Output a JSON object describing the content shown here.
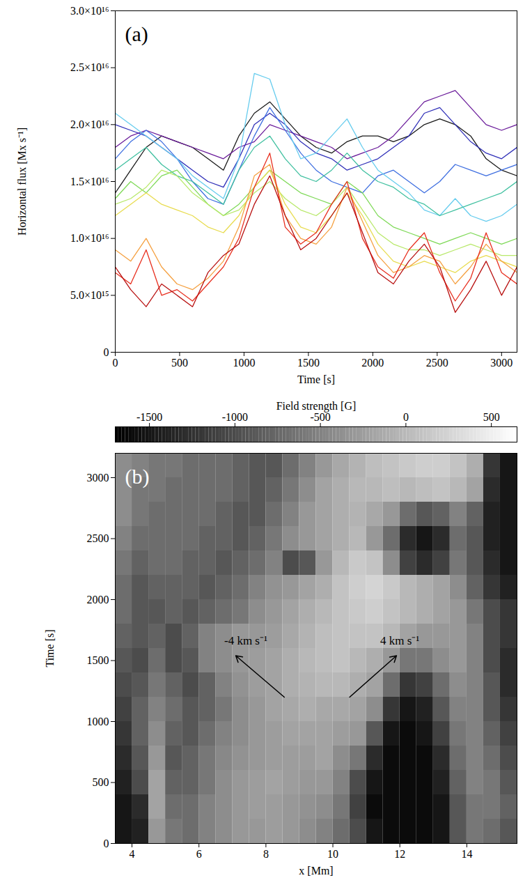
{
  "chart_data": [
    {
      "type": "line",
      "panel": "(a)",
      "x_label": "Time [s]",
      "y_label": "Horizontal flux [Mx s⁻¹]",
      "xlim": [
        0,
        3120
      ],
      "xticks": [
        0,
        500,
        1000,
        1500,
        2000,
        2500,
        3000
      ],
      "ylim": [
        0,
        3e+16
      ],
      "yticks": [
        0,
        {
          "value": 5000000000000000.0,
          "label": "5.0×10¹⁵"
        },
        {
          "value": 1e+16,
          "label": "1.0×10¹⁶"
        },
        {
          "value": 1.5e+16,
          "label": "1.5×10¹⁶"
        },
        {
          "value": 2e+16,
          "label": "2.0×10¹⁶"
        },
        {
          "value": 2.5e+16,
          "label": "2.5×10¹⁶"
        },
        {
          "value": 3e+16,
          "label": "3.0×10¹⁶"
        }
      ],
      "grid": false,
      "x": [
        0,
        120,
        240,
        360,
        480,
        600,
        720,
        840,
        960,
        1080,
        1200,
        1320,
        1440,
        1560,
        1680,
        1800,
        1920,
        2040,
        2160,
        2280,
        2400,
        2520,
        2640,
        2760,
        2880,
        3000,
        3120
      ],
      "series": [
        {
          "color": "#1a1a1a",
          "values": [
            1.4e+16,
            1.6e+16,
            1.8e+16,
            1.9e+16,
            1.85e+16,
            1.8e+16,
            1.7e+16,
            1.6e+16,
            1.9e+16,
            2.1e+16,
            2.2e+16,
            2.05e+16,
            1.9e+16,
            1.8e+16,
            1.75e+16,
            1.85e+16,
            1.9e+16,
            1.9e+16,
            1.85e+16,
            1.9e+16,
            2e+16,
            2.05e+16,
            2e+16,
            1.9e+16,
            1.7e+16,
            1.6e+16,
            1.55e+16
          ]
        },
        {
          "color": "#6a1b9a",
          "values": [
            1.8e+16,
            1.9e+16,
            1.95e+16,
            1.9e+16,
            1.85e+16,
            1.8e+16,
            1.75e+16,
            1.7e+16,
            1.8e+16,
            1.85e+16,
            2e+16,
            1.95e+16,
            1.9e+16,
            1.85e+16,
            1.8e+16,
            1.7e+16,
            1.75e+16,
            1.8e+16,
            1.9e+16,
            2.05e+16,
            2.2e+16,
            2.25e+16,
            2.3e+16,
            2.15e+16,
            2e+16,
            1.95e+16,
            2e+16
          ]
        },
        {
          "color": "#2f2fb8",
          "values": [
            2e+16,
            1.95e+16,
            1.9e+16,
            1.8e+16,
            1.7e+16,
            1.6e+16,
            1.5e+16,
            1.45e+16,
            1.7e+16,
            2e+16,
            2.1e+16,
            2e+16,
            1.85e+16,
            1.75e+16,
            1.7e+16,
            1.6e+16,
            1.65e+16,
            1.7e+16,
            1.8e+16,
            1.9e+16,
            2.1e+16,
            2.15e+16,
            2e+16,
            1.85e+16,
            1.75e+16,
            1.7e+16,
            1.8e+16
          ]
        },
        {
          "color": "#3f6fe0",
          "values": [
            1.7e+16,
            1.85e+16,
            1.95e+16,
            1.85e+16,
            1.7e+16,
            1.5e+16,
            1.35e+16,
            1.3e+16,
            1.6e+16,
            1.9e+16,
            2.15e+16,
            1.95e+16,
            1.75e+16,
            1.6e+16,
            1.5e+16,
            1.45e+16,
            1.4e+16,
            1.55e+16,
            1.6e+16,
            1.5e+16,
            1.4e+16,
            1.5e+16,
            1.65e+16,
            1.6e+16,
            1.55e+16,
            1.6e+16,
            1.65e+16
          ]
        },
        {
          "color": "#66ccee",
          "values": [
            2.1e+16,
            2e+16,
            1.9e+16,
            1.8e+16,
            1.7e+16,
            1.55e+16,
            1.45e+16,
            1.35e+16,
            1.7e+16,
            2.45e+16,
            2.4e+16,
            2e+16,
            1.7e+16,
            1.75e+16,
            1.9e+16,
            2.05e+16,
            1.8e+16,
            1.6e+16,
            1.5e+16,
            1.4e+16,
            1.25e+16,
            1.2e+16,
            1.35e+16,
            1.2e+16,
            1.15e+16,
            1.2e+16,
            1.3e+16
          ]
        },
        {
          "color": "#40c0a0",
          "values": [
            1.6e+16,
            1.7e+16,
            1.8e+16,
            1.65e+16,
            1.55e+16,
            1.5e+16,
            1.4e+16,
            1.3e+16,
            1.6e+16,
            1.8e+16,
            1.9e+16,
            1.7e+16,
            1.55e+16,
            1.5e+16,
            1.6e+16,
            1.75e+16,
            1.6e+16,
            1.5e+16,
            1.45e+16,
            1.35e+16,
            1.3e+16,
            1.2e+16,
            1.25e+16,
            1.3e+16,
            1.35e+16,
            1.4e+16,
            1.5e+16
          ]
        },
        {
          "color": "#7ed957",
          "values": [
            1.35e+16,
            1.5e+16,
            1.4e+16,
            1.55e+16,
            1.6e+16,
            1.45e+16,
            1.3e+16,
            1.2e+16,
            1.3e+16,
            1.45e+16,
            1.6e+16,
            1.5e+16,
            1.4e+16,
            1.35e+16,
            1.3e+16,
            1.5e+16,
            1.4e+16,
            1.2e+16,
            1.1e+16,
            1.05e+16,
            1e+16,
            9500000000000000.0,
            1e+16,
            1.05e+16,
            1e+16,
            9500000000000000.0,
            1e+16
          ]
        },
        {
          "color": "#b8e86a",
          "values": [
            1.3e+16,
            1.35e+16,
            1.45e+16,
            1.6e+16,
            1.55e+16,
            1.4e+16,
            1.3e+16,
            1.2e+16,
            1.25e+16,
            1.4e+16,
            1.5e+16,
            1.35e+16,
            1.25e+16,
            1.2e+16,
            1.3e+16,
            1.45e+16,
            1.25e+16,
            1.05e+16,
            9500000000000000.0,
            9000000000000000.0,
            9000000000000000.0,
            8500000000000000.0,
            9000000000000000.0,
            9500000000000000.0,
            9000000000000000.0,
            8500000000000000.0,
            8500000000000000.0
          ]
        },
        {
          "color": "#e8dc50",
          "values": [
            1.2e+16,
            1.3e+16,
            1.4e+16,
            1.3e+16,
            1.25e+16,
            1.2e+16,
            1.1e+16,
            1.05e+16,
            1.2e+16,
            1.45e+16,
            1.6e+16,
            1.3e+16,
            1.1e+16,
            1.05e+16,
            1.2e+16,
            1.4e+16,
            1.2e+16,
            9500000000000000.0,
            8000000000000000.0,
            7500000000000000.0,
            8000000000000000.0,
            7500000000000000.0,
            7000000000000000.0,
            8000000000000000.0,
            8500000000000000.0,
            8000000000000000.0,
            7500000000000000.0
          ]
        },
        {
          "color": "#f5a040",
          "values": [
            9000000000000000.0,
            8000000000000000.0,
            1e+16,
            7500000000000000.0,
            6000000000000000.0,
            5500000000000000.0,
            6500000000000000.0,
            8000000000000000.0,
            1.1e+16,
            1.55e+16,
            1.65e+16,
            1.2e+16,
            1e+16,
            9500000000000000.0,
            1.1e+16,
            1.45e+16,
            1.15e+16,
            8500000000000000.0,
            7000000000000000.0,
            7500000000000000.0,
            8500000000000000.0,
            8000000000000000.0,
            6000000000000000.0,
            7500000000000000.0,
            9500000000000000.0,
            8000000000000000.0,
            7000000000000000.0
          ]
        },
        {
          "color": "#e83020",
          "values": [
            7000000000000000.0,
            6000000000000000.0,
            9000000000000000.0,
            5000000000000000.0,
            5500000000000000.0,
            4500000000000000.0,
            6000000000000000.0,
            7500000000000000.0,
            1e+16,
            1.45e+16,
            1.75e+16,
            1.1e+16,
            9500000000000000.0,
            1.05e+16,
            1.3e+16,
            1.5e+16,
            1e+16,
            7500000000000000.0,
            6500000000000000.0,
            9000000000000000.0,
            1.05e+16,
            7000000000000000.0,
            4500000000000000.0,
            6500000000000000.0,
            1.05e+16,
            7000000000000000.0,
            6000000000000000.0
          ]
        },
        {
          "color": "#b81010",
          "values": [
            7500000000000000.0,
            5500000000000000.0,
            4000000000000000.0,
            6000000000000000.0,
            5000000000000000.0,
            4000000000000000.0,
            7000000000000000.0,
            8500000000000000.0,
            9500000000000000.0,
            1.3e+16,
            1.55e+16,
            1.2e+16,
            9000000000000000.0,
            1e+16,
            1.2e+16,
            1.4e+16,
            1.05e+16,
            7000000000000000.0,
            6000000000000000.0,
            8000000000000000.0,
            9500000000000000.0,
            7500000000000000.0,
            3500000000000000.0,
            5500000000000000.0,
            8000000000000000.0,
            5000000000000000.0,
            7500000000000000.0
          ]
        }
      ]
    },
    {
      "type": "heatmap",
      "panel": "(b)",
      "x_label": "x [Mm]",
      "y_label": "Time [s]",
      "xlim": [
        3.5,
        15.5
      ],
      "xticks": [
        4,
        6,
        8,
        10,
        12,
        14
      ],
      "ylim": [
        0,
        3200
      ],
      "yticks": [
        0,
        500,
        1000,
        1500,
        2000,
        2500,
        3000
      ],
      "grid": false,
      "colorbar": {
        "label": "Field strength [G]",
        "range": [
          -1700,
          650
        ],
        "ticks": [
          -1500,
          -1000,
          -500,
          0,
          500
        ]
      },
      "x_bins": [
        3.5,
        4.0,
        4.5,
        5.0,
        5.5,
        6.0,
        6.5,
        7.0,
        7.5,
        8.0,
        8.5,
        9.0,
        9.5,
        10.0,
        10.5,
        11.0,
        11.5,
        12.0,
        12.5,
        13.0,
        13.5,
        14.0,
        14.5,
        15.0,
        15.5
      ],
      "y_bins": [
        0,
        200,
        400,
        600,
        800,
        1000,
        1200,
        1400,
        1600,
        1800,
        2000,
        2200,
        2400,
        2600,
        2800,
        3000,
        3200
      ],
      "cells": [
        [
          -1500,
          -1400,
          -300,
          -600,
          -700,
          -500,
          -400,
          -300,
          -300,
          -250,
          -300,
          -400,
          -500,
          -700,
          -1000,
          -1500,
          -1600,
          -1600,
          -1600,
          -1500,
          -900,
          -600,
          -700,
          -900
        ],
        [
          -1500,
          -1300,
          -200,
          -700,
          -700,
          -500,
          -400,
          -300,
          -250,
          -250,
          -300,
          -350,
          -400,
          -600,
          -1100,
          -1600,
          -1600,
          -1600,
          -1600,
          -1500,
          -900,
          -600,
          -600,
          -800
        ],
        [
          -1400,
          -1000,
          -200,
          -800,
          -800,
          -600,
          -400,
          -300,
          -250,
          -200,
          -250,
          -300,
          -300,
          -500,
          -1000,
          -1500,
          -1600,
          -1600,
          -1600,
          -1400,
          -800,
          -500,
          -600,
          -900
        ],
        [
          -1300,
          -900,
          -300,
          -900,
          -800,
          -600,
          -450,
          -350,
          -300,
          -250,
          -250,
          -250,
          -200,
          -400,
          -600,
          -1300,
          -1600,
          -1600,
          -1600,
          -1300,
          -700,
          -500,
          -700,
          -1000
        ],
        [
          -1200,
          -800,
          -400,
          -800,
          -900,
          -700,
          -500,
          -400,
          -300,
          -250,
          -200,
          -200,
          -200,
          -250,
          -300,
          -900,
          -1500,
          -1600,
          -1500,
          -1100,
          -600,
          -500,
          -800,
          -1100
        ],
        [
          -1100,
          -800,
          -500,
          -700,
          -900,
          -800,
          -600,
          -400,
          -300,
          -200,
          -150,
          -100,
          -150,
          -150,
          -200,
          -400,
          -1200,
          -1500,
          -1400,
          -900,
          -500,
          -500,
          -900,
          -1200
        ],
        [
          -1000,
          -900,
          -600,
          -800,
          -1000,
          -800,
          -500,
          -350,
          -250,
          -200,
          -100,
          -50,
          0,
          0,
          -100,
          -200,
          -700,
          -1200,
          -1100,
          -700,
          -400,
          -500,
          -900,
          -1300
        ],
        [
          -900,
          -1000,
          -700,
          -1000,
          -900,
          -500,
          -400,
          -300,
          -250,
          -200,
          -100,
          0,
          50,
          100,
          0,
          -100,
          -300,
          -600,
          -600,
          -400,
          -300,
          -500,
          -1000,
          -1300
        ],
        [
          -800,
          -900,
          -800,
          -1000,
          -800,
          -500,
          -400,
          -300,
          -300,
          -250,
          -150,
          -50,
          50,
          100,
          100,
          100,
          0,
          -200,
          -300,
          -300,
          -300,
          -500,
          -1000,
          -1200
        ],
        [
          -700,
          -900,
          -900,
          -800,
          -900,
          -800,
          -700,
          -600,
          -400,
          -300,
          -200,
          -100,
          0,
          100,
          150,
          200,
          100,
          0,
          -100,
          -200,
          -300,
          -600,
          -1000,
          -1200
        ],
        [
          -700,
          -900,
          -800,
          -800,
          -800,
          -900,
          -800,
          -700,
          -500,
          -350,
          -300,
          -200,
          -100,
          100,
          200,
          250,
          150,
          0,
          -100,
          -200,
          -400,
          -800,
          -1200,
          -1400
        ],
        [
          -600,
          -800,
          -700,
          -700,
          -800,
          -800,
          -900,
          -800,
          -700,
          -500,
          -1000,
          -900,
          -300,
          0,
          150,
          100,
          -400,
          -1100,
          -1300,
          -1100,
          -600,
          -900,
          -1300,
          -1500
        ],
        [
          -500,
          -700,
          -700,
          -700,
          -700,
          -800,
          -800,
          -900,
          -800,
          -600,
          -400,
          -300,
          -200,
          -100,
          0,
          -300,
          -700,
          -1300,
          -1500,
          -1300,
          -700,
          -900,
          -1400,
          -1500
        ],
        [
          -400,
          -600,
          -700,
          -700,
          -700,
          -700,
          -800,
          -900,
          -900,
          -700,
          -500,
          -300,
          -200,
          -100,
          -50,
          -150,
          -300,
          -700,
          -900,
          -800,
          -500,
          -800,
          -1400,
          -1500
        ],
        [
          -400,
          -600,
          -600,
          -700,
          -700,
          -700,
          -700,
          -800,
          -900,
          -800,
          -600,
          -400,
          -200,
          -100,
          0,
          0,
          50,
          0,
          50,
          100,
          0,
          -200,
          -1300,
          -1500
        ],
        [
          -400,
          -500,
          -600,
          -600,
          -700,
          -700,
          -700,
          -800,
          -900,
          -900,
          -700,
          -500,
          -300,
          -150,
          -50,
          50,
          100,
          150,
          200,
          200,
          100,
          -100,
          -1200,
          -1500
        ]
      ],
      "annotations": [
        {
          "text": "-4 km s⁻¹",
          "x": 7.4,
          "y": 1660,
          "arrow_from": [
            8.55,
            1200
          ],
          "arrow_to": [
            7.1,
            1540
          ]
        },
        {
          "text": "4 km s⁻¹",
          "x": 12.0,
          "y": 1660,
          "arrow_from": [
            10.5,
            1200
          ],
          "arrow_to": [
            11.9,
            1540
          ]
        }
      ]
    }
  ]
}
